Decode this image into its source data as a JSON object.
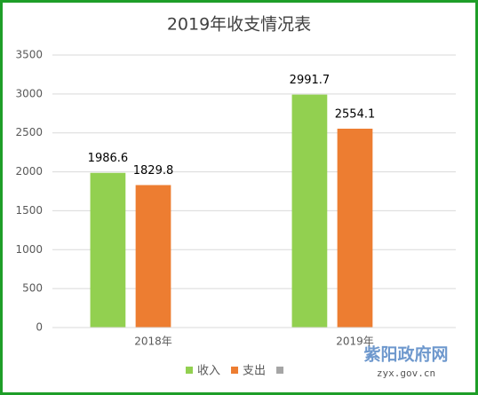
{
  "chart_data": {
    "type": "bar",
    "title": "2019年收支情况表",
    "categories": [
      "2018年",
      "2019年"
    ],
    "series": [
      {
        "name": "收入",
        "color": "#92d050",
        "values": [
          1986.6,
          2991.7
        ]
      },
      {
        "name": "支出",
        "color": "#ed7d31",
        "values": [
          1829.8,
          2554.1
        ]
      },
      {
        "color": "#a5a5a5",
        "values": [
          null,
          null
        ]
      }
    ],
    "ylim": [
      0,
      3500
    ],
    "yticks": [
      0,
      500,
      1000,
      1500,
      2000,
      2500,
      3000,
      3500
    ],
    "grid": true,
    "legend": "bottom"
  },
  "watermark": {
    "name": "紫阳政府网",
    "url": "zyx.gov.cn"
  }
}
